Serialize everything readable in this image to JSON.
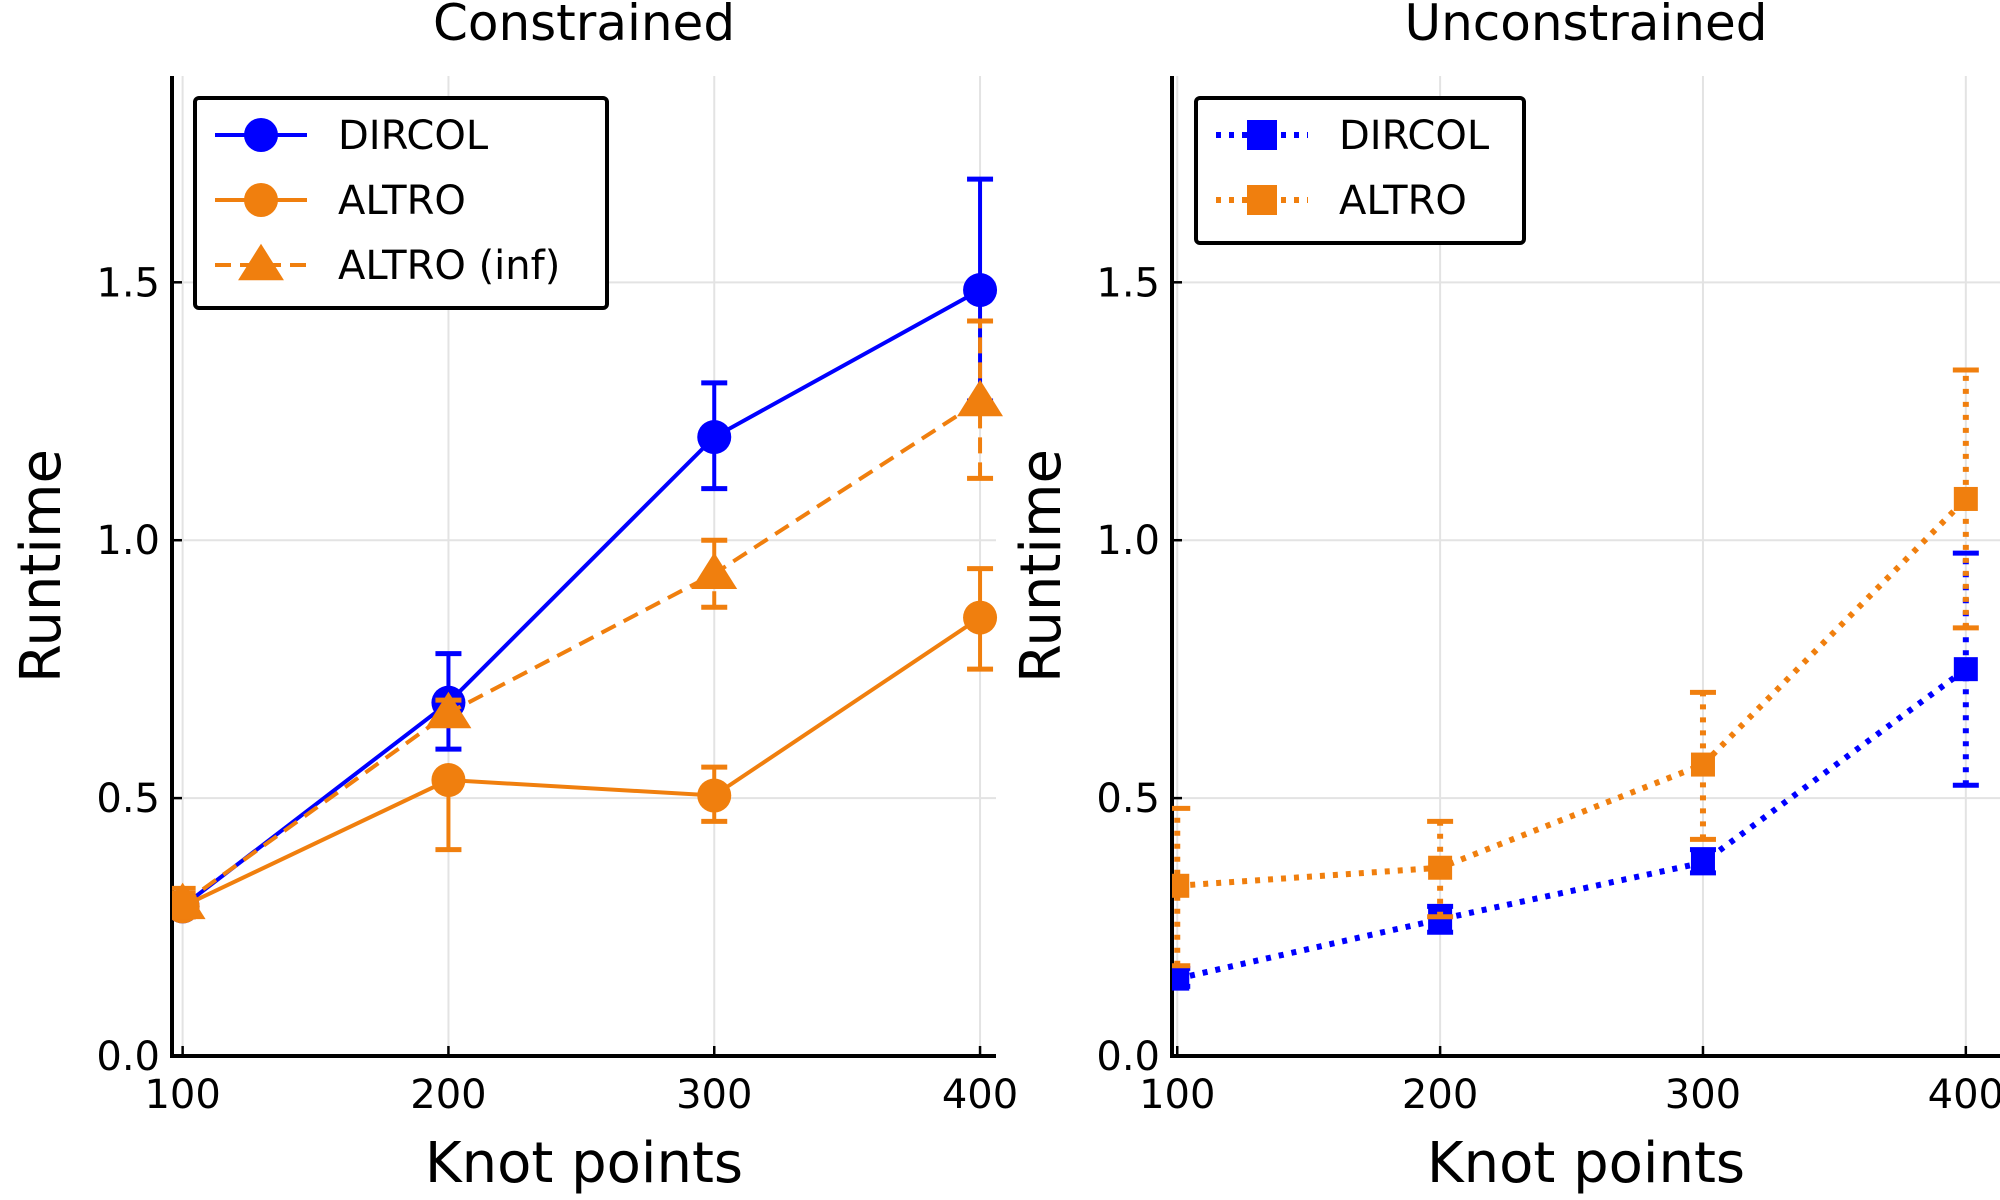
{
  "chart_data": [
    {
      "type": "line",
      "title": "Constrained",
      "xlabel": "Knot points",
      "ylabel": "Runtime",
      "xlim": [
        96,
        406
      ],
      "ylim": [
        0,
        1.9
      ],
      "xticks": [
        100,
        200,
        300,
        400
      ],
      "xtick_labels": [
        "100",
        "200",
        "300",
        "400"
      ],
      "yticks": [
        0,
        0.5,
        1.0,
        1.5
      ],
      "ytick_labels": [
        "0.0",
        "0.5",
        "1.0",
        "1.5"
      ],
      "grid": true,
      "legend_position": "top-left",
      "x": [
        100,
        200,
        300,
        400
      ],
      "series": [
        {
          "name": "DIRCOL",
          "color": "#0000ff",
          "linestyle": "solid",
          "marker": "circle",
          "values": [
            0.29,
            0.685,
            1.2,
            1.485
          ],
          "err_low": [
            0.27,
            0.595,
            1.1,
            1.27
          ],
          "err_high": [
            0.31,
            0.78,
            1.305,
            1.7
          ]
        },
        {
          "name": "ALTRO",
          "color": "#f07f0e",
          "linestyle": "solid",
          "marker": "circle",
          "values": [
            0.29,
            0.535,
            0.505,
            0.85
          ],
          "err_low": [
            0.27,
            0.4,
            0.455,
            0.75
          ],
          "err_high": [
            0.315,
            0.535,
            0.56,
            0.945
          ]
        },
        {
          "name": "ALTRO (inf)",
          "color": "#f07f0e",
          "linestyle": "dashed",
          "marker": "triangle",
          "values": [
            0.295,
            0.665,
            0.935,
            1.27
          ],
          "err_low": [
            0.27,
            0.645,
            0.87,
            1.12
          ],
          "err_high": [
            0.325,
            0.69,
            1.0,
            1.425
          ]
        }
      ]
    },
    {
      "type": "line",
      "title": "Unconstrained",
      "xlabel": "Knot points",
      "ylabel": "Runtime",
      "xlim": [
        98,
        413
      ],
      "ylim": [
        0,
        1.9
      ],
      "xticks": [
        100,
        200,
        300,
        400
      ],
      "xtick_labels": [
        "100",
        "200",
        "300",
        "400"
      ],
      "yticks": [
        0,
        0.5,
        1.0,
        1.5
      ],
      "ytick_labels": [
        "0.0",
        "0.5",
        "1.0",
        "1.5"
      ],
      "grid": true,
      "legend_position": "top-left",
      "x": [
        100,
        200,
        300,
        400
      ],
      "series": [
        {
          "name": "DIRCOL",
          "color": "#0000ff",
          "linestyle": "dotted",
          "marker": "square",
          "values": [
            0.15,
            0.265,
            0.375,
            0.75
          ],
          "err_low": [
            0.135,
            0.24,
            0.355,
            0.525
          ],
          "err_high": [
            0.17,
            0.29,
            0.4,
            0.975
          ]
        },
        {
          "name": "ALTRO",
          "color": "#f07f0e",
          "linestyle": "dotted",
          "marker": "square",
          "values": [
            0.33,
            0.365,
            0.565,
            1.08
          ],
          "err_low": [
            0.175,
            0.27,
            0.42,
            0.83
          ],
          "err_high": [
            0.48,
            0.455,
            0.705,
            1.33
          ]
        }
      ]
    }
  ]
}
